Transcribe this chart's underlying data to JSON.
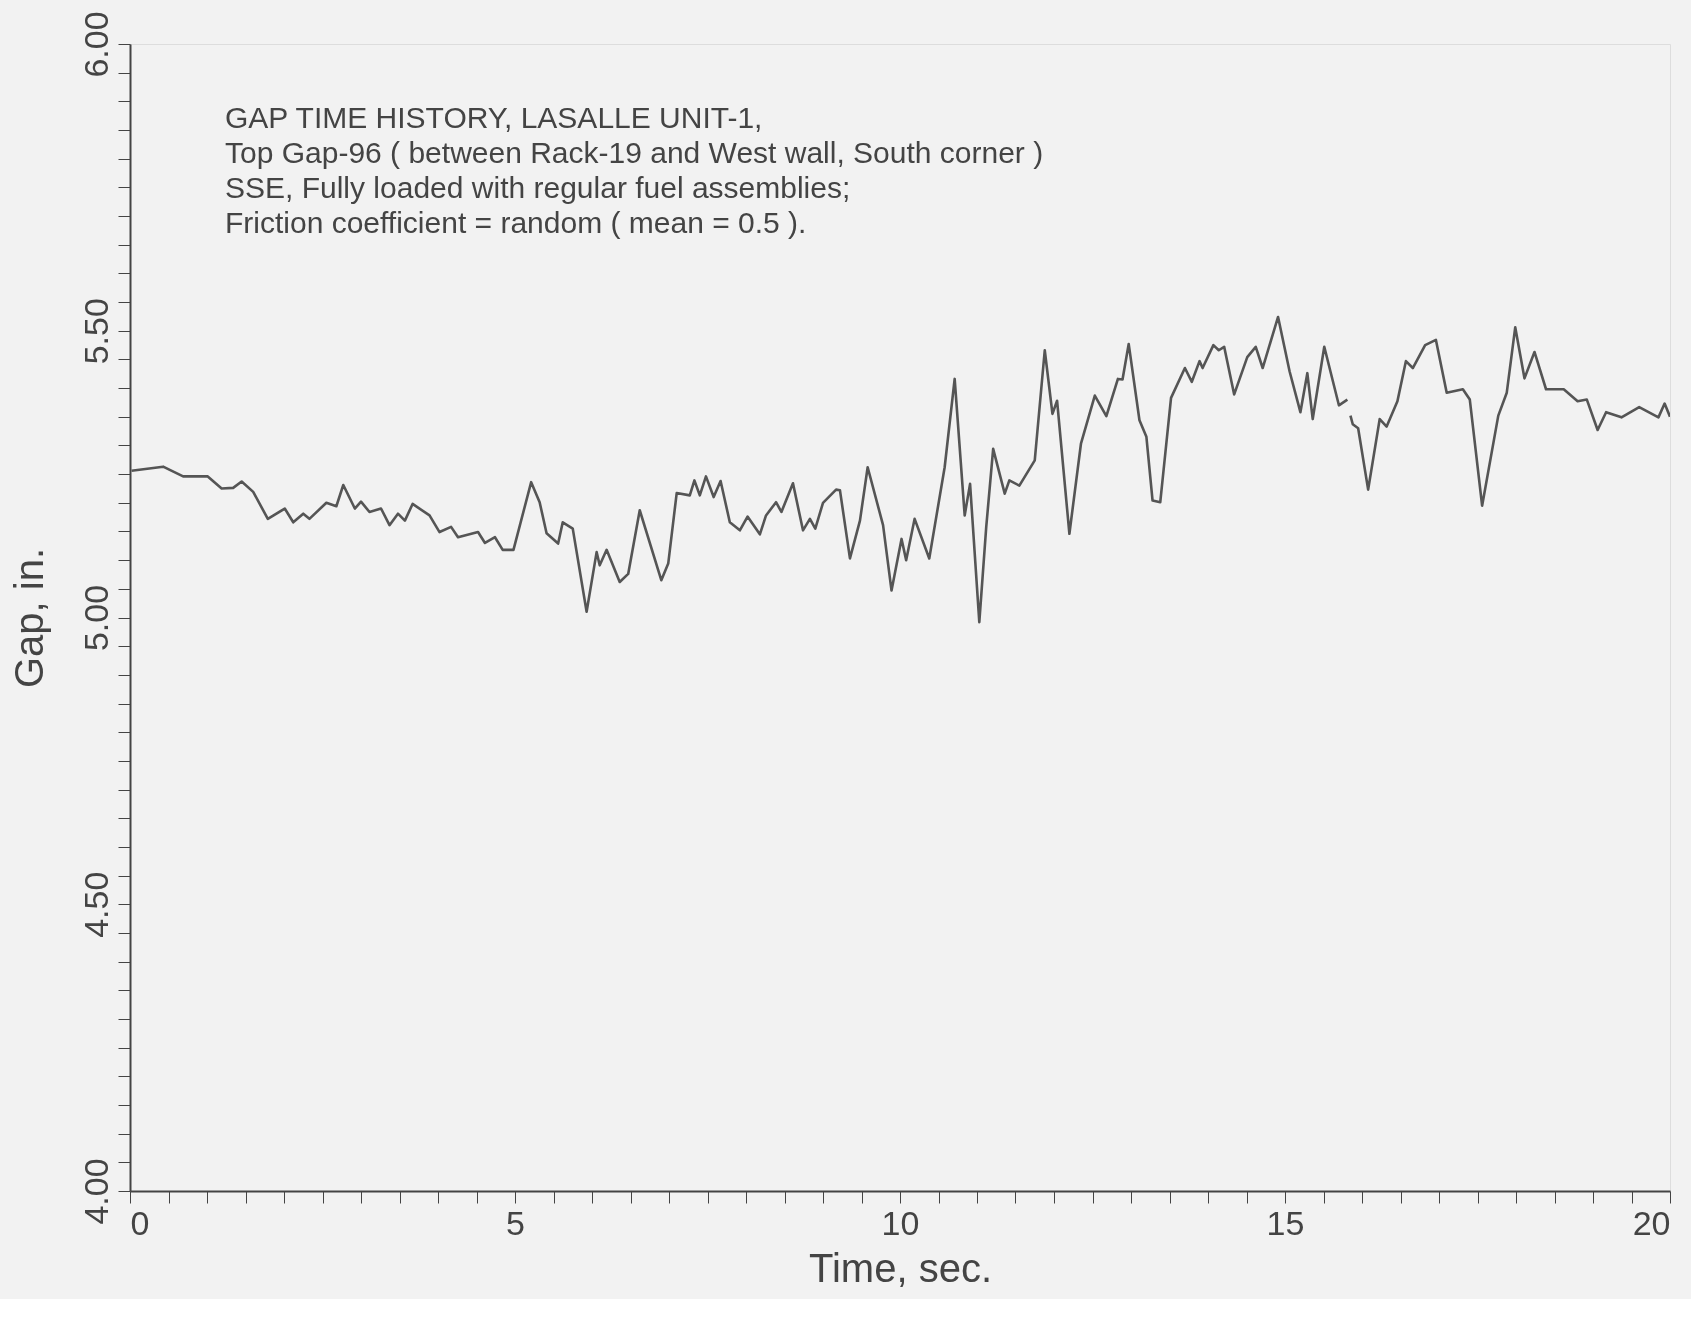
{
  "chart_data": {
    "type": "line",
    "title": "GAP TIME HISTORY, LASALLE UNIT-1,",
    "annotations": [
      "Top Gap-96 ( between Rack-19 and West wall, South corner )",
      "SSE, Fully loaded with regular fuel assemblies;",
      "Friction coefficient = random ( mean = 0.5 )."
    ],
    "xlabel": "Time, sec.",
    "ylabel": "Gap, in.",
    "x": [
      0.02,
      0.43,
      0.69,
      1.01,
      1.19,
      1.34,
      1.45,
      1.6,
      1.79,
      2.01,
      2.12,
      2.25,
      2.33,
      2.55,
      2.68,
      2.77,
      2.92,
      3.0,
      3.11,
      3.26,
      3.37,
      3.48,
      3.57,
      3.67,
      3.89,
      4.02,
      4.17,
      4.26,
      4.52,
      4.61,
      4.74,
      4.84,
      4.98,
      5.21,
      5.32,
      5.41,
      5.56,
      5.62,
      5.75,
      5.93,
      6.06,
      6.1,
      6.19,
      6.36,
      6.47,
      6.62,
      6.9,
      6.99,
      7.1,
      7.27,
      7.33,
      7.4,
      7.48,
      7.58,
      7.67,
      7.79,
      7.92,
      8.02,
      8.18,
      8.26,
      8.39,
      8.46,
      8.61,
      8.74,
      8.83,
      8.9,
      9.0,
      9.17,
      9.22,
      9.35,
      9.48,
      9.58,
      9.78,
      9.89,
      10.02,
      10.08,
      10.19,
      10.38,
      10.58,
      10.71,
      10.84,
      10.91,
      11.03,
      11.12,
      11.21,
      11.36,
      11.42,
      11.55,
      11.75,
      11.88,
      11.98,
      12.04,
      12.2,
      12.35,
      12.53,
      12.68,
      12.83,
      12.89,
      12.97,
      13.11,
      13.2,
      13.28,
      13.38,
      13.52,
      13.7,
      13.79,
      13.89,
      13.93,
      14.07,
      14.14,
      14.21,
      14.34,
      14.51,
      14.62,
      14.71,
      14.91,
      15.06,
      15.2,
      15.29,
      15.36,
      15.51,
      15.7,
      15.81,
      15.83,
      15.85,
      15.88,
      15.95,
      16.08,
      16.23,
      16.32,
      16.46,
      16.57,
      16.66,
      16.82,
      16.96,
      17.1,
      17.31,
      17.4,
      17.56,
      17.77,
      17.88,
      17.99,
      18.11,
      18.24,
      18.39,
      18.62,
      18.8,
      18.92,
      19.06,
      19.17,
      19.37,
      19.6,
      19.85,
      19.93,
      20.0
    ],
    "series": [
      {
        "color": "#555555",
        "values": [
          5.256,
          5.263,
          5.246,
          5.246,
          5.225,
          5.226,
          5.237,
          5.219,
          5.172,
          5.19,
          5.166,
          5.181,
          5.172,
          5.2,
          5.194,
          5.231,
          5.19,
          5.202,
          5.184,
          5.19,
          5.161,
          5.181,
          5.169,
          5.198,
          5.178,
          5.149,
          5.158,
          5.14,
          5.149,
          5.13,
          5.14,
          5.118,
          5.118,
          5.236,
          5.201,
          5.147,
          5.129,
          5.166,
          5.155,
          5.01,
          5.114,
          5.091,
          5.118,
          5.062,
          5.076,
          5.187,
          5.065,
          5.094,
          5.217,
          5.213,
          5.239,
          5.213,
          5.246,
          5.21,
          5.238,
          5.166,
          5.152,
          5.176,
          5.145,
          5.178,
          5.201,
          5.184,
          5.234,
          5.152,
          5.172,
          5.155,
          5.2,
          5.223,
          5.222,
          5.103,
          5.169,
          5.262,
          5.161,
          5.047,
          5.137,
          5.1,
          5.172,
          5.103,
          5.262,
          5.416,
          5.178,
          5.233,
          4.992,
          5.158,
          5.294,
          5.216,
          5.239,
          5.23,
          5.274,
          5.466,
          5.355,
          5.378,
          5.146,
          5.303,
          5.387,
          5.351,
          5.416,
          5.415,
          5.477,
          5.344,
          5.315,
          5.204,
          5.201,
          5.383,
          5.435,
          5.411,
          5.447,
          5.435,
          5.475,
          5.466,
          5.472,
          5.389,
          5.454,
          5.472,
          5.435,
          5.524,
          5.429,
          5.358,
          5.426,
          5.346,
          5.472,
          5.37,
          5.38,
          null,
          5.352,
          5.337,
          5.33,
          5.223,
          5.346,
          5.333,
          5.377,
          5.447,
          5.435,
          5.475,
          5.484,
          5.392,
          5.398,
          5.38,
          5.195,
          5.352,
          5.392,
          5.506,
          5.417,
          5.463,
          5.398,
          5.398,
          5.377,
          5.38,
          5.327,
          5.358,
          5.349,
          5.367,
          5.349,
          5.373,
          5.35
        ]
      }
    ],
    "xlim": [
      0,
      20
    ],
    "ylim": [
      4,
      6
    ],
    "xticks": [
      0,
      {
        "value": 0.5,
        "label": null
      },
      {
        "value": 1,
        "label": null
      },
      {
        "value": 1.5,
        "label": null
      },
      {
        "value": 2,
        "label": null
      },
      {
        "value": 2.5,
        "label": null
      },
      {
        "value": 3,
        "label": null
      },
      {
        "value": 3.5,
        "label": null
      },
      {
        "value": 4,
        "label": null
      },
      {
        "value": 4.5,
        "label": null
      },
      5,
      {
        "value": 5.5,
        "label": null
      },
      {
        "value": 6,
        "label": null
      },
      {
        "value": 6.5,
        "label": null
      },
      {
        "value": 7,
        "label": null
      },
      {
        "value": 7.5,
        "label": null
      },
      {
        "value": 8,
        "label": null
      },
      {
        "value": 8.5,
        "label": null
      },
      {
        "value": 9,
        "label": null
      },
      {
        "value": 9.5,
        "label": null
      },
      10,
      {
        "value": 10.5,
        "label": null
      },
      {
        "value": 11,
        "label": null
      },
      {
        "value": 11.5,
        "label": null
      },
      {
        "value": 12,
        "label": null
      },
      {
        "value": 12.5,
        "label": null
      },
      {
        "value": 13,
        "label": null
      },
      {
        "value": 13.5,
        "label": null
      },
      {
        "value": 14,
        "label": null
      },
      {
        "value": 14.5,
        "label": null
      },
      15,
      {
        "value": 15.5,
        "label": null
      },
      {
        "value": 16,
        "label": null
      },
      {
        "value": 16.5,
        "label": null
      },
      {
        "value": 17,
        "label": null
      },
      {
        "value": 17.5,
        "label": null
      },
      {
        "value": 18,
        "label": null
      },
      {
        "value": 18.5,
        "label": null
      },
      {
        "value": 19,
        "label": null
      },
      {
        "value": 19.5,
        "label": null
      },
      20
    ],
    "yticks": [
      {
        "value": 4,
        "label": "4.00"
      },
      {
        "value": 4.05,
        "label": null
      },
      {
        "value": 4.1,
        "label": null
      },
      {
        "value": 4.15,
        "label": null
      },
      {
        "value": 4.2,
        "label": null
      },
      {
        "value": 4.25,
        "label": null
      },
      {
        "value": 4.3,
        "label": null
      },
      {
        "value": 4.35,
        "label": null
      },
      {
        "value": 4.4,
        "label": null
      },
      {
        "value": 4.45,
        "label": null
      },
      {
        "value": 4.5,
        "label": "4.50"
      },
      {
        "value": 4.55,
        "label": null
      },
      {
        "value": 4.6,
        "label": null
      },
      {
        "value": 4.65,
        "label": null
      },
      {
        "value": 4.7,
        "label": null
      },
      {
        "value": 4.75,
        "label": null
      },
      {
        "value": 4.8,
        "label": null
      },
      {
        "value": 4.85,
        "label": null
      },
      {
        "value": 4.9,
        "label": null
      },
      {
        "value": 4.95,
        "label": null
      },
      {
        "value": 5,
        "label": "5.00"
      },
      {
        "value": 5.05,
        "label": null
      },
      {
        "value": 5.1,
        "label": null
      },
      {
        "value": 5.15,
        "label": null
      },
      {
        "value": 5.2,
        "label": null
      },
      {
        "value": 5.25,
        "label": null
      },
      {
        "value": 5.3,
        "label": null
      },
      {
        "value": 5.35,
        "label": null
      },
      {
        "value": 5.4,
        "label": null
      },
      {
        "value": 5.45,
        "label": null
      },
      {
        "value": 5.5,
        "label": "5.50"
      },
      {
        "value": 5.55,
        "label": null
      },
      {
        "value": 5.6,
        "label": null
      },
      {
        "value": 5.65,
        "label": null
      },
      {
        "value": 5.7,
        "label": null
      },
      {
        "value": 5.75,
        "label": null
      },
      {
        "value": 5.8,
        "label": null
      },
      {
        "value": 5.85,
        "label": null
      },
      {
        "value": 5.9,
        "label": null
      },
      {
        "value": 5.95,
        "label": null
      },
      {
        "value": 6,
        "label": "6.00"
      }
    ],
    "grid": false,
    "marker": "none",
    "line_style": "solid"
  }
}
